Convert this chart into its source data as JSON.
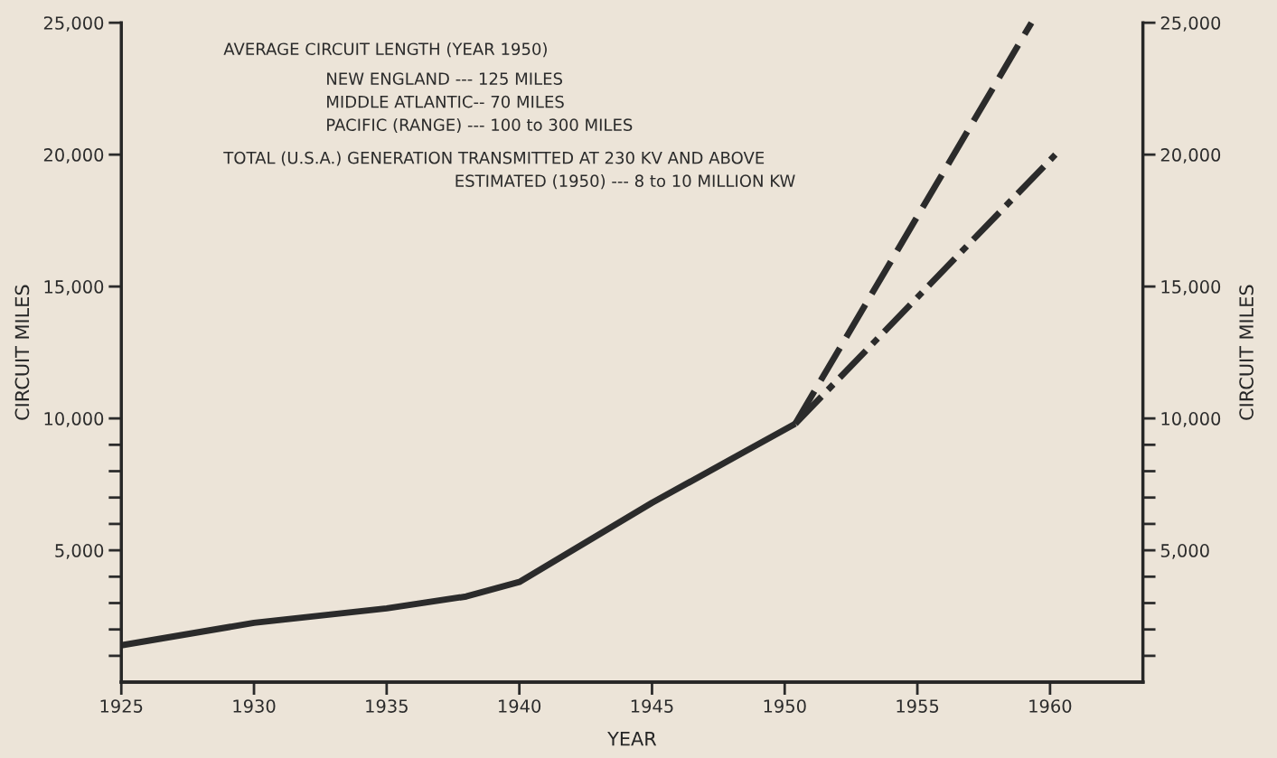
{
  "chart_data": {
    "type": "line",
    "xlabel": "YEAR",
    "ylabel": "CIRCUIT MILES",
    "y2label": "CIRCUIT MILES",
    "xlim": [
      1925,
      1963.5
    ],
    "xticks": [
      1925,
      1930,
      1935,
      1940,
      1945,
      1950,
      1955,
      1960
    ],
    "ylim": [
      0,
      25000
    ],
    "yticks": [
      {
        "value": 1000,
        "label": null
      },
      {
        "value": 2000,
        "label": null
      },
      {
        "value": 3000,
        "label": null
      },
      {
        "value": 4000,
        "label": null
      },
      {
        "value": 5000,
        "label": "5,000"
      },
      {
        "value": 6000,
        "label": null
      },
      {
        "value": 7000,
        "label": null
      },
      {
        "value": 8000,
        "label": null
      },
      {
        "value": 9000,
        "label": null
      },
      {
        "value": 10000,
        "label": "10,000"
      },
      {
        "value": 15000,
        "label": "15,000"
      },
      {
        "value": 20000,
        "label": "20,000"
      },
      {
        "value": 25000,
        "label": "25,000"
      }
    ],
    "y2lim": [
      0,
      25000
    ],
    "y2ticks": [
      {
        "value": 1000,
        "label": null
      },
      {
        "value": 2000,
        "label": null
      },
      {
        "value": 3000,
        "label": null
      },
      {
        "value": 4000,
        "label": null
      },
      {
        "value": 5000,
        "label": "5,000"
      },
      {
        "value": 6000,
        "label": null
      },
      {
        "value": 7000,
        "label": null
      },
      {
        "value": 8000,
        "label": null
      },
      {
        "value": 9000,
        "label": null
      },
      {
        "value": 10000,
        "label": "10,000"
      },
      {
        "value": 15000,
        "label": "15,000"
      },
      {
        "value": 20000,
        "label": "20,000"
      },
      {
        "value": 25000,
        "label": "25,000"
      }
    ],
    "grid": false,
    "legend": false,
    "marker": "none",
    "series": [
      {
        "color": "#2b2b2b",
        "line_style": "solid",
        "x": [
          1925,
          1930,
          1935,
          1938,
          1940,
          1945,
          1950.4
        ],
        "values": [
          1400,
          2250,
          2800,
          3250,
          3800,
          6800,
          9800
        ]
      },
      {
        "color": "#2b2b2b",
        "line_style": "dashed",
        "x": [
          1950.4,
          1959.3
        ],
        "values": [
          9800,
          25000
        ]
      },
      {
        "color": "#2b2b2b",
        "line_style": "dashdot",
        "x": [
          1950.4,
          1960.2
        ],
        "values": [
          9800,
          20000
        ]
      }
    ],
    "annotations": [
      "AVERAGE CIRCUIT LENGTH (YEAR 1950)",
      "NEW ENGLAND --- 125 MILES",
      "MIDDLE ATLANTIC-- 70 MILES",
      "PACIFIC (RANGE) --- 100 to 300 MILES",
      "TOTAL (U.S.A.) GENERATION TRANSMITTED AT 230 KV AND ABOVE",
      "ESTIMATED (1950) --- 8 to 10 MILLION KW"
    ]
  }
}
